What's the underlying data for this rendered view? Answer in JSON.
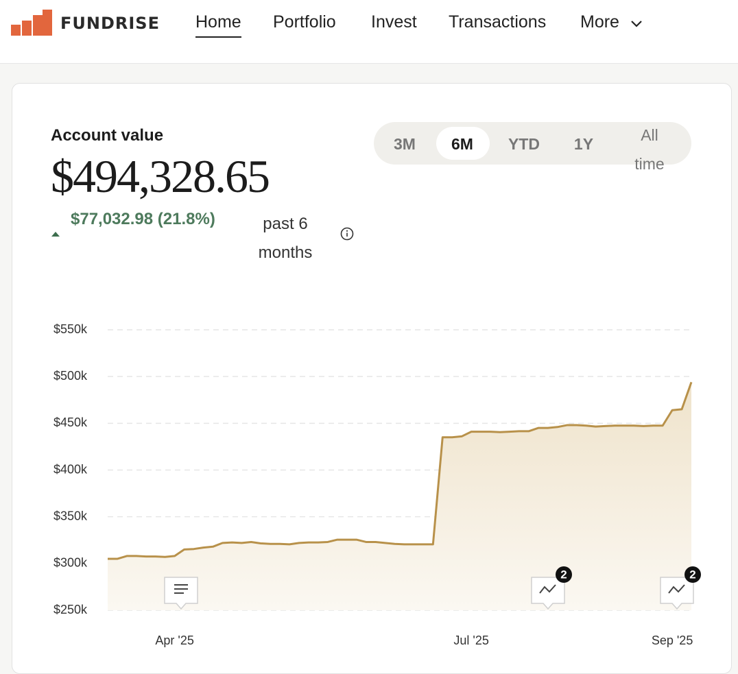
{
  "nav": {
    "brand": "FUNDRISE",
    "items": [
      "Home",
      "Portfolio",
      "Invest",
      "Transactions",
      "More"
    ]
  },
  "account": {
    "label": "Account value",
    "value": "$494,328.65",
    "change": "$77,032.98 (21.8%)",
    "period": "past 6 months"
  },
  "ranges": [
    "3M",
    "6M",
    "YTD",
    "1Y",
    "All time"
  ],
  "chart_badges": [
    "2",
    "2"
  ],
  "chart_data": {
    "type": "line",
    "categories": [
      null,
      null,
      null,
      null,
      null,
      null,
      null,
      "Apr '25",
      null,
      null,
      null,
      null,
      null,
      null,
      null,
      null,
      null,
      null,
      null,
      null,
      null,
      null,
      null,
      null,
      null,
      null,
      null,
      null,
      null,
      null,
      null,
      null,
      null,
      null,
      null,
      null,
      null,
      null,
      "Jul '25",
      null,
      null,
      null,
      null,
      null,
      null,
      null,
      null,
      null,
      null,
      null,
      null,
      null,
      null,
      null,
      null,
      null,
      null,
      null,
      null,
      "Sep '25",
      null,
      null
    ],
    "values": [
      305,
      305,
      308,
      308,
      307.5,
      307.5,
      307,
      308,
      315,
      315.5,
      317,
      318,
      322,
      322.5,
      322,
      323,
      321.5,
      321,
      321,
      320.5,
      322,
      322.5,
      322.5,
      323,
      325.5,
      325.5,
      325.5,
      323,
      323,
      322,
      321,
      320.5,
      320.5,
      320.5,
      320.5,
      435,
      435,
      436,
      441,
      441,
      441,
      440.5,
      441,
      441.5,
      441.5,
      445,
      445,
      446,
      448,
      448,
      447.5,
      446.5,
      447,
      447.5,
      447.5,
      447.5,
      447,
      447.5,
      447.5,
      464,
      465,
      494
    ],
    "color": "#b8914a",
    "ylim": [
      250,
      550
    ],
    "yticks": [
      {
        "value": 250,
        "label": "$250k"
      },
      {
        "value": 300,
        "label": "$300k"
      },
      {
        "value": 350,
        "label": "$350k"
      },
      {
        "value": 400,
        "label": "$400k"
      },
      {
        "value": 450,
        "label": "$450k"
      },
      {
        "value": 500,
        "label": "$500k"
      },
      {
        "value": 550,
        "label": "$550k"
      }
    ],
    "grid": true
  }
}
